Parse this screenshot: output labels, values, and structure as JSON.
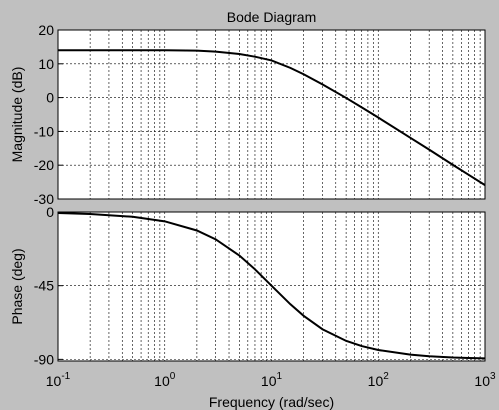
{
  "chart_data": {
    "type": "line",
    "title": "Bode Diagram",
    "xlabel": "Frequency  (rad/sec)",
    "xscale": "log",
    "xlim": [
      0.1,
      1000
    ],
    "x_ticks": [
      {
        "base": "10",
        "exp": "-1",
        "value": 0.1
      },
      {
        "base": "10",
        "exp": "0",
        "value": 1
      },
      {
        "base": "10",
        "exp": "1",
        "value": 10
      },
      {
        "base": "10",
        "exp": "2",
        "value": 100
      },
      {
        "base": "10",
        "exp": "3",
        "value": 1000
      }
    ],
    "grid": true,
    "panels": [
      {
        "name": "magnitude",
        "ylabel": "Magnitude (dB)",
        "ylim": [
          -30,
          20
        ],
        "y_ticks": [
          "20",
          "10",
          "0",
          "-10",
          "-20",
          "-30"
        ],
        "y_tick_values": [
          20,
          10,
          0,
          -10,
          -20,
          -30
        ],
        "series": [
          {
            "color": "#000000",
            "x": [
              0.1,
              0.5,
              1,
              2,
              3,
              5,
              7,
              10,
              15,
              20,
              30,
              50,
              70,
              100,
              200,
              300,
              500,
              700,
              1000
            ],
            "y": [
              14,
              14,
              14,
              13.9,
              13.6,
              12.9,
              12.1,
              11,
              8.8,
              6.9,
              3.9,
              -0.1,
              -2.9,
              -5.9,
              -11.9,
              -15.4,
              -19.9,
              -22.8,
              -25.9
            ]
          }
        ]
      },
      {
        "name": "phase",
        "ylabel": "Phase (deg)",
        "ylim": [
          -91,
          0
        ],
        "y_ticks": [
          "0",
          "-45",
          "-90"
        ],
        "y_tick_values": [
          0,
          -45,
          -90
        ],
        "series": [
          {
            "color": "#000000",
            "x": [
              0.1,
              0.2,
              0.5,
              1,
              2,
              3,
              5,
              7,
              10,
              15,
              20,
              30,
              50,
              70,
              100,
              200,
              300,
              500,
              700,
              1000
            ],
            "y": [
              -0.6,
              -1.2,
              -2.9,
              -5.7,
              -11.3,
              -16.7,
              -26.6,
              -35,
              -45,
              -56.3,
              -63.4,
              -71.6,
              -78.7,
              -81.9,
              -84.3,
              -87.1,
              -88.1,
              -88.9,
              -89.2,
              -89.4
            ]
          }
        ]
      }
    ]
  }
}
